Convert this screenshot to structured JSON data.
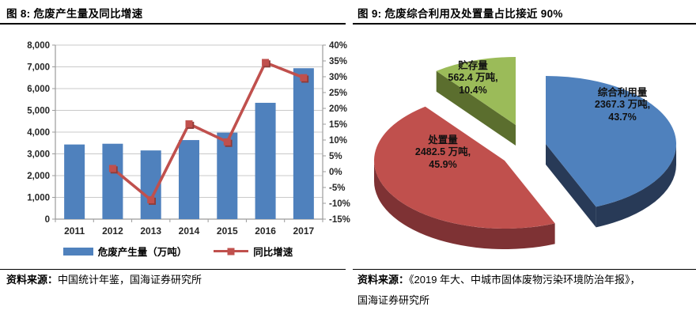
{
  "figure8": {
    "title": "图 8:  危废产生量及同比增速",
    "source_prefix": "资料来源：",
    "source_text": "中国统计年鉴，国海证券研究所"
  },
  "figure9": {
    "title": "图 9:  危废综合利用及处置量占比接近 90%",
    "source_prefix": "资料来源：",
    "source_line1": "《2019 年大、中城市固体废物污染环境防治年报》，",
    "source_line2": "国海证券研究所"
  },
  "chart_data": [
    {
      "type": "bar",
      "title": "危废产生量及同比增速",
      "categories": [
        "2011",
        "2012",
        "2013",
        "2014",
        "2015",
        "2016",
        "2017"
      ],
      "series": [
        {
          "name": "危废产生量（万吨）",
          "type": "bar",
          "axis": "left",
          "values": [
            3431,
            3465,
            3157,
            3634,
            3976,
            5347,
            6937
          ]
        },
        {
          "name": "同比增速",
          "type": "line",
          "axis": "right",
          "values": [
            null,
            1.0,
            -8.9,
            15.1,
            9.4,
            34.5,
            29.7
          ]
        }
      ],
      "left_axis": {
        "min": 0,
        "max": 8000,
        "step": 1000
      },
      "right_axis": {
        "min": -15,
        "max": 40,
        "step": 5,
        "suffix": "%"
      },
      "grid": true,
      "legend_position": "bottom",
      "colors": {
        "bar": "#4F81BD",
        "line": "#C0504D",
        "marker_shadow": "#8E3B38",
        "gridline": "#C9C9C9",
        "axis": "#9B9B9B"
      }
    },
    {
      "type": "pie",
      "title": "危废综合利用及处置量占比接近 90%",
      "style": "3d-exploded",
      "start_angle_deg": 0,
      "unit": "万吨",
      "slices": [
        {
          "name": "综合利用量",
          "value": 2367.3,
          "pct": 43.7,
          "label_lines": [
            "综合利用量",
            "2367.3 万吨,",
            "43.7%"
          ],
          "color": "#4F81BD",
          "side_color": "#283A57"
        },
        {
          "name": "处置量",
          "value": 2482.5,
          "pct": 45.9,
          "label_lines": [
            "处置量",
            "2482.5 万吨,",
            "45.9%"
          ],
          "color": "#C0504D",
          "side_color": "#7E3234"
        },
        {
          "name": "贮存量",
          "value": 562.4,
          "pct": 10.4,
          "label_lines": [
            "贮存量",
            "562.4 万吨,",
            "10.4%"
          ],
          "color": "#9BBB59",
          "side_color": "#5B6E2E"
        }
      ]
    }
  ]
}
